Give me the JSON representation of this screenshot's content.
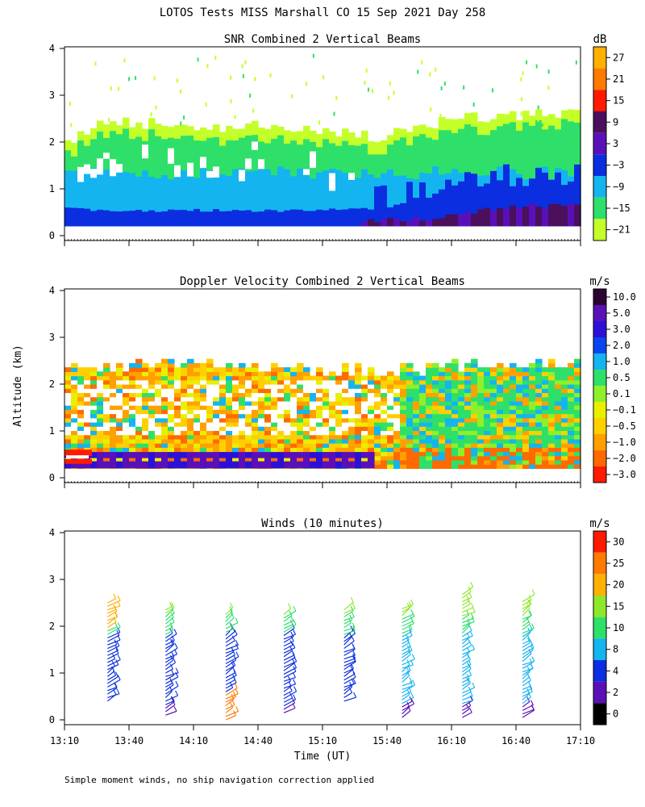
{
  "chart_data": {
    "title": "LOTOS Tests MISS Marshall CO  15 Sep 2021 Day 258",
    "footnote": "Simple moment winds, no ship navigation correction applied",
    "xlabel": "Time (UT)",
    "ylabel": "Altitude (km)",
    "x_ticks": [
      "13:10",
      "13:40",
      "14:10",
      "14:40",
      "15:10",
      "15:40",
      "16:10",
      "16:40",
      "17:10"
    ],
    "y_ticks": [
      "0",
      "1",
      "2",
      "3",
      "4"
    ],
    "xlim": [
      "13:10",
      "17:10"
    ],
    "ylim": [
      0,
      4
    ],
    "panels": [
      {
        "name": "snr",
        "type": "heatmap",
        "title": "SNR Combined 2 Vertical Beams",
        "units": "dB",
        "colorbar": {
          "ticks": [
            "27",
            "21",
            "15",
            "9",
            "3",
            "−3",
            "−9",
            "−15",
            "−21"
          ],
          "colors": [
            "#ffb000",
            "#ff7a00",
            "#ff1a00",
            "#4b0f5c",
            "#5a10b8",
            "#0a2ee0",
            "#14b4f0",
            "#2ee06a",
            "#c4ff2a"
          ]
        },
        "columns": [
          {
            "t": 0.01,
            "top": 2.0,
            "low": 0.45
          },
          {
            "t": 0.05,
            "top": 2.3,
            "low": 0.4
          },
          {
            "t": 0.12,
            "top": 2.45,
            "low": 0.38
          },
          {
            "t": 0.2,
            "top": 2.35,
            "low": 0.4
          },
          {
            "t": 0.28,
            "top": 2.3,
            "low": 0.4
          },
          {
            "t": 0.36,
            "top": 2.35,
            "low": 0.4
          },
          {
            "t": 0.44,
            "top": 2.3,
            "low": 0.4
          },
          {
            "t": 0.52,
            "top": 2.2,
            "low": 0.42
          },
          {
            "t": 0.6,
            "top": 2.1,
            "low": 0.42
          },
          {
            "t": 0.66,
            "top": 2.25,
            "low": 0.55
          },
          {
            "t": 0.74,
            "top": 2.45,
            "low": 0.75
          },
          {
            "t": 0.82,
            "top": 2.55,
            "low": 0.9
          },
          {
            "t": 0.9,
            "top": 2.6,
            "low": 0.95
          },
          {
            "t": 0.99,
            "top": 2.6,
            "low": 0.9
          }
        ]
      },
      {
        "name": "velocity",
        "type": "heatmap",
        "title": "Doppler Velocity Combined 2 Vertical Beams",
        "units": "m/s",
        "colorbar": {
          "ticks": [
            "10.0",
            "5.0",
            "3.0",
            "2.0",
            "1.0",
            "0.5",
            "0.1",
            "−0.1",
            "−0.5",
            "−1.0",
            "−2.0",
            "−3.0"
          ],
          "colors": [
            "#2a0530",
            "#5a10b8",
            "#2c10d8",
            "#0a46f0",
            "#14b4f0",
            "#2ee06a",
            "#8ef02a",
            "#e8f000",
            "#ffd000",
            "#ffa000",
            "#ff6a00",
            "#ff1a00"
          ]
        },
        "columns": [
          {
            "t": 0.01,
            "top": 2.3,
            "band": "red"
          },
          {
            "t": 0.1,
            "top": 2.35,
            "band": "purple"
          },
          {
            "t": 0.2,
            "top": 2.45,
            "band": "purple"
          },
          {
            "t": 0.3,
            "top": 2.4,
            "band": "purple"
          },
          {
            "t": 0.4,
            "top": 2.35,
            "band": "purple"
          },
          {
            "t": 0.5,
            "top": 2.3,
            "band": "purple"
          },
          {
            "t": 0.6,
            "top": 2.2,
            "band": "purple"
          },
          {
            "t": 0.7,
            "top": 2.3,
            "band": "none"
          },
          {
            "t": 0.8,
            "top": 2.4,
            "band": "none"
          },
          {
            "t": 0.9,
            "top": 2.3,
            "band": "none"
          },
          {
            "t": 0.99,
            "top": 2.5,
            "band": "none"
          }
        ]
      },
      {
        "name": "winds",
        "type": "wind-barbs",
        "title": "Winds (10 minutes)",
        "units": "m/s",
        "colorbar": {
          "ticks": [
            "30",
            "25",
            "20",
            "15",
            "10",
            "8",
            "4",
            "2",
            "0"
          ],
          "colors": [
            "#ff1a00",
            "#ff7a00",
            "#ffb000",
            "#8ee82a",
            "#2ee06a",
            "#14b4f0",
            "#0a2ee0",
            "#5a10b8",
            "#000000"
          ]
        },
        "profiles": [
          {
            "time": "13:30",
            "bottom": 0.4,
            "top": 2.55
          },
          {
            "time": "13:57",
            "bottom": 0.1,
            "top": 2.4
          },
          {
            "time": "14:25",
            "bottom": 0.0,
            "top": 2.3
          },
          {
            "time": "14:52",
            "bottom": 0.15,
            "top": 2.3
          },
          {
            "time": "15:20",
            "bottom": 0.4,
            "top": 2.35
          },
          {
            "time": "15:47",
            "bottom": 0.05,
            "top": 2.4
          },
          {
            "time": "16:15",
            "bottom": 0.05,
            "top": 2.75
          },
          {
            "time": "16:43",
            "bottom": 0.05,
            "top": 2.6
          }
        ]
      }
    ]
  }
}
